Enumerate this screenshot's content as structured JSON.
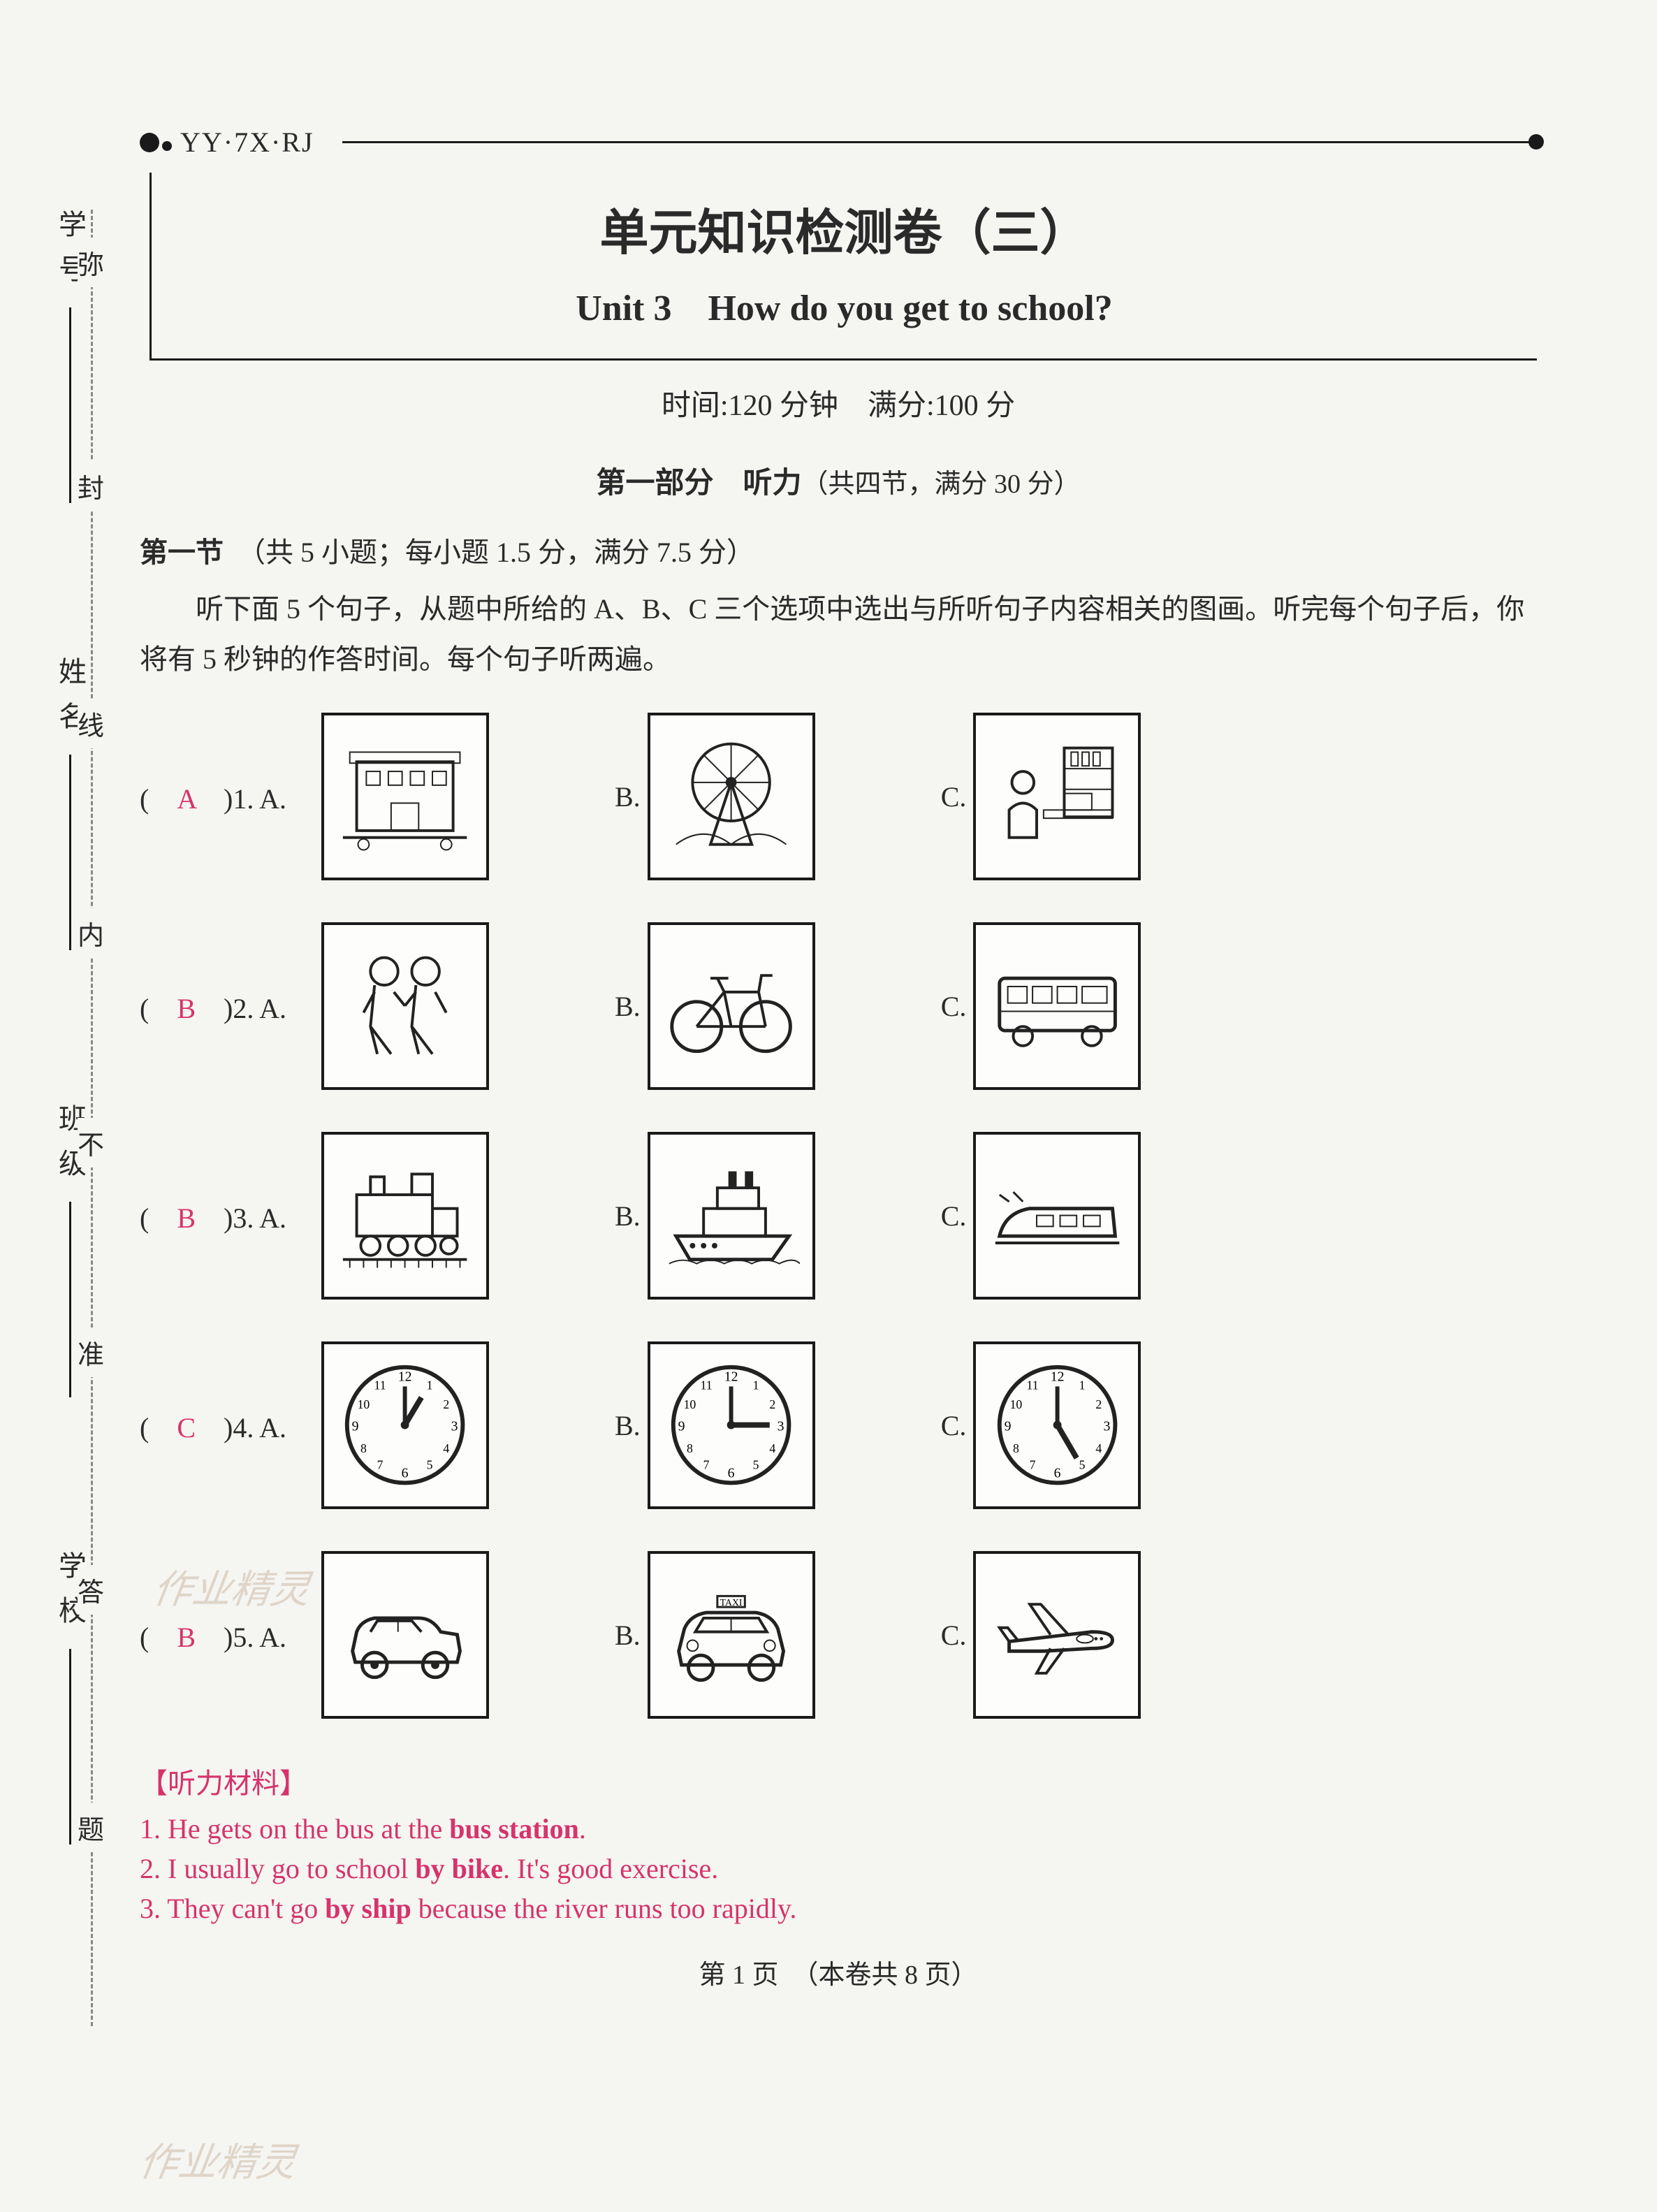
{
  "header": {
    "code": "YY·7X·RJ",
    "title_main": "单元知识检测卷（三）",
    "title_sub": "Unit 3　How do you get to school?",
    "time_score": "时间:120 分钟　满分:100 分"
  },
  "part": {
    "bold": "第一部分　听力",
    "normal": "（共四节，满分 30 分）"
  },
  "section1": {
    "bold": "第一节",
    "rest": "（共 5 小题；每小题 1.5 分，满分 7.5 分）",
    "instructions": "听下面 5 个句子，从题中所给的 A、B、C 三个选项中选出与所听句子内容相关的图画。听完每个句子后，你将有 5 秒钟的作答时间。每个句子听两遍。"
  },
  "questions": [
    {
      "num": "1",
      "answer": "A",
      "labels": [
        "A.",
        "B.",
        "C."
      ]
    },
    {
      "num": "2",
      "answer": "B",
      "labels": [
        "A.",
        "B.",
        "C."
      ]
    },
    {
      "num": "3",
      "answer": "B",
      "labels": [
        "A.",
        "B.",
        "C."
      ]
    },
    {
      "num": "4",
      "answer": "C",
      "labels": [
        "A.",
        "B.",
        "C."
      ]
    },
    {
      "num": "5",
      "answer": "B",
      "labels": [
        "A.",
        "B.",
        "C."
      ]
    }
  ],
  "listening": {
    "head": "【听力材料】",
    "lines": [
      "1. He gets on the bus at the <b>bus station</b>.",
      "2. I usually go to school <b>by bike</b>. It's good exercise.",
      "3. They can't go <b>by ship</b> because the river runs too rapidly."
    ]
  },
  "footer": "第 1 页　（本卷共 8 页）",
  "margin": {
    "labels": [
      "学号",
      "姓名",
      "班级",
      "学校"
    ],
    "seal": [
      "弥",
      "封",
      "线",
      "内",
      "不",
      "准",
      "答",
      "题"
    ]
  },
  "watermarks": [
    "作业精灵",
    "作业精灵"
  ],
  "colors": {
    "text": "#2a2a2a",
    "accent": "#d6336c",
    "bg": "#f5f5f2",
    "watermark": "#cdbba6"
  },
  "icons": {
    "q1": [
      "building-icon",
      "ferris-wheel-icon",
      "reading-room-icon"
    ],
    "q2": [
      "children-walking-icon",
      "bicycle-icon",
      "bus-icon"
    ],
    "q3": [
      "train-icon",
      "ship-icon",
      "highspeed-train-icon"
    ],
    "q4": [
      "clock-1-icon",
      "clock-3-icon",
      "clock-5-icon"
    ],
    "q5": [
      "car-icon",
      "taxi-icon",
      "airplane-icon"
    ]
  }
}
